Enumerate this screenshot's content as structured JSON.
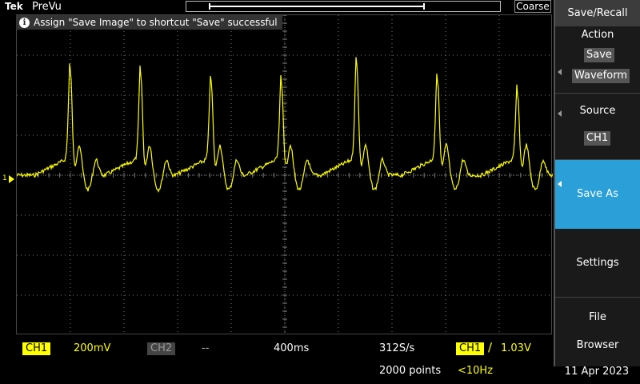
{
  "header": {
    "brand": "Tek",
    "mode": "PreVu",
    "record_fraction": 0.72,
    "coarse_label": "Coarse"
  },
  "notice": {
    "icon": "info-icon",
    "text": "Assign \"Save Image\" to shortcut \"Save\" successful"
  },
  "display": {
    "ch1_marker": "1",
    "trace_color": "#ffff00",
    "grid_color": "#7a7a7a"
  },
  "status": {
    "ch1_label": "CH1",
    "ch1_scale": "200mV",
    "ch2_label": "CH2",
    "ch2_scale": "--",
    "timebase": "400ms",
    "sample_rate": "312S/s",
    "trigger_source": "CH1",
    "trigger_slope": "∕",
    "trigger_level": "1.03V",
    "record_length": "2000 points",
    "trigger_freq": "<10Hz"
  },
  "menu": {
    "title": "Save/Recall",
    "action": {
      "title": "Action",
      "options": [
        "Save",
        "Waveform"
      ]
    },
    "source": {
      "title": "Source",
      "value": "CH1"
    },
    "save_as": "Save As",
    "settings": "Settings",
    "file_browser": [
      "File",
      "Browser"
    ]
  },
  "date": "11 Apr 2023",
  "colors": {
    "ch1": "#ffff00",
    "menu_active": "#2a9fd8",
    "menu_bg": "#1a1a1a"
  }
}
